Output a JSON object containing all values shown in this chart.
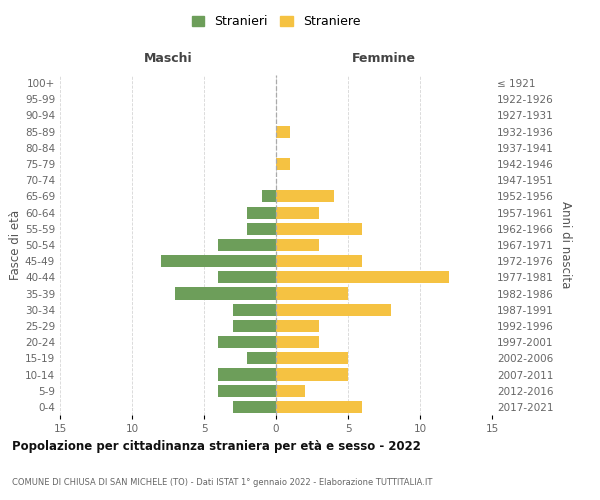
{
  "age_groups": [
    "0-4",
    "5-9",
    "10-14",
    "15-19",
    "20-24",
    "25-29",
    "30-34",
    "35-39",
    "40-44",
    "45-49",
    "50-54",
    "55-59",
    "60-64",
    "65-69",
    "70-74",
    "75-79",
    "80-84",
    "85-89",
    "90-94",
    "95-99",
    "100+"
  ],
  "birth_years": [
    "2017-2021",
    "2012-2016",
    "2007-2011",
    "2002-2006",
    "1997-2001",
    "1992-1996",
    "1987-1991",
    "1982-1986",
    "1977-1981",
    "1972-1976",
    "1967-1971",
    "1962-1966",
    "1957-1961",
    "1952-1956",
    "1947-1951",
    "1942-1946",
    "1937-1941",
    "1932-1936",
    "1927-1931",
    "1922-1926",
    "≤ 1921"
  ],
  "maschi": [
    3,
    4,
    4,
    2,
    4,
    3,
    3,
    7,
    4,
    8,
    4,
    2,
    2,
    1,
    0,
    0,
    0,
    0,
    0,
    0,
    0
  ],
  "femmine": [
    6,
    2,
    5,
    5,
    3,
    3,
    8,
    5,
    12,
    6,
    3,
    6,
    3,
    4,
    0,
    1,
    0,
    1,
    0,
    0,
    0
  ],
  "color_maschi": "#6d9e5a",
  "color_femmine": "#f5c242",
  "background_color": "#ffffff",
  "grid_color": "#cccccc",
  "title": "Popolazione per cittadinanza straniera per età e sesso - 2022",
  "subtitle": "COMUNE DI CHIUSA DI SAN MICHELE (TO) - Dati ISTAT 1° gennaio 2022 - Elaborazione TUTTITALIA.IT",
  "xlabel_left": "Maschi",
  "xlabel_right": "Femmine",
  "ylabel_left": "Fasce di età",
  "ylabel_right": "Anni di nascita",
  "legend_maschi": "Stranieri",
  "legend_femmine": "Straniere",
  "xlim": 15
}
